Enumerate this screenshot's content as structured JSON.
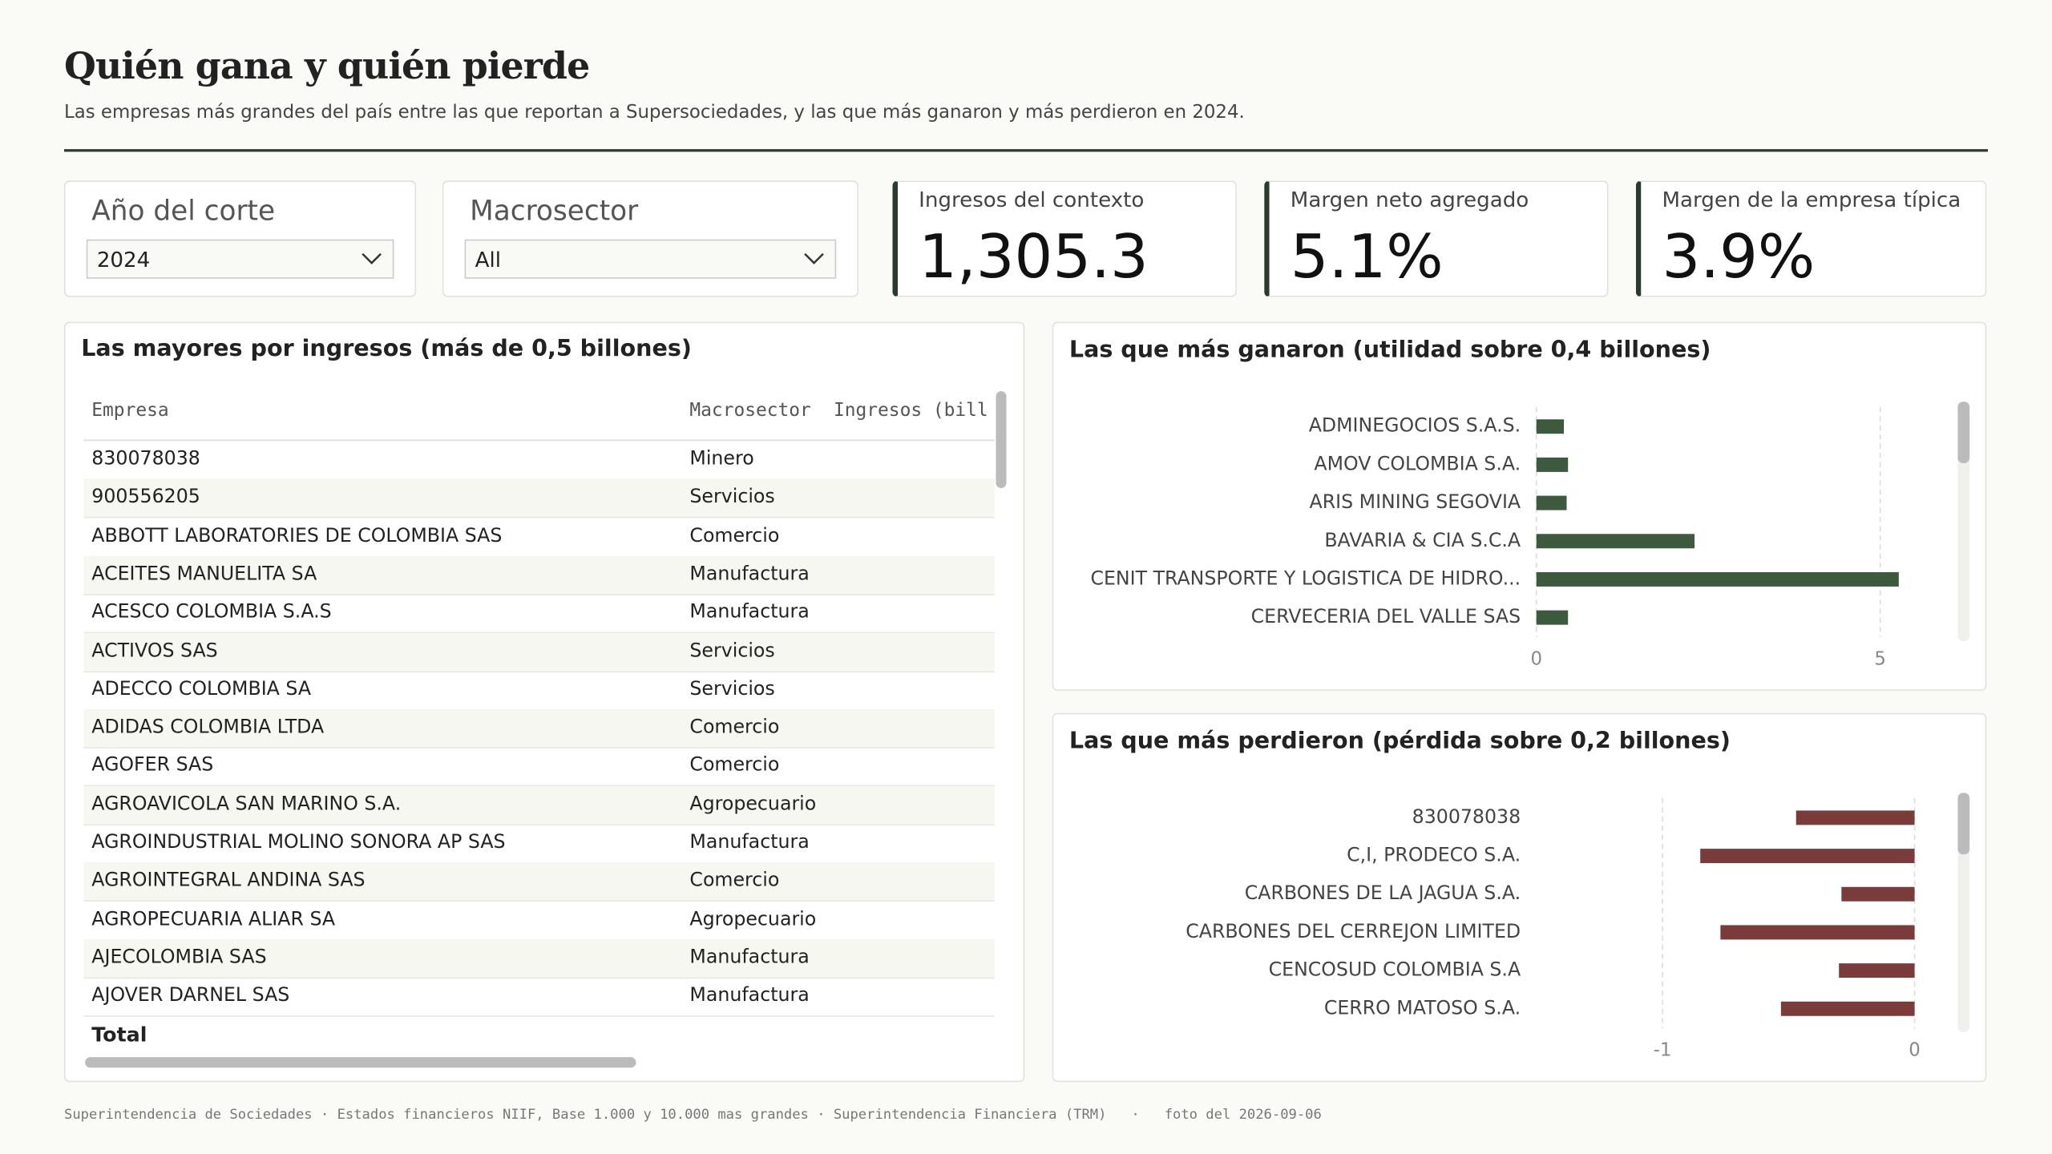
{
  "header": {
    "title": "Quién gana y quién pierde",
    "subtitle": "Las empresas más grandes del país entre las que reportan a Supersociedades, y las que más ganaron y más perdieron en 2024."
  },
  "filters": [
    {
      "label": "Año del corte",
      "value": "2024"
    },
    {
      "label": "Macrosector",
      "value": "All"
    }
  ],
  "kpis": [
    {
      "label": "Ingresos del contexto",
      "value": "1,305.3"
    },
    {
      "label": "Margen neto agregado",
      "value": "5.1%"
    },
    {
      "label": "Margen de la empresa típica",
      "value": "3.9%"
    }
  ],
  "table": {
    "title": "Las mayores por ingresos (más de 0,5 billones)",
    "columns": [
      "Empresa",
      "Macrosector",
      "Ingresos (bill"
    ],
    "rows": [
      [
        "830078038",
        "Minero"
      ],
      [
        "900556205",
        "Servicios"
      ],
      [
        "ABBOTT LABORATORIES DE COLOMBIA SAS",
        "Comercio"
      ],
      [
        "ACEITES MANUELITA SA",
        "Manufactura"
      ],
      [
        "ACESCO COLOMBIA S.A.S",
        "Manufactura"
      ],
      [
        "ACTIVOS SAS",
        "Servicios"
      ],
      [
        "ADECCO COLOMBIA SA",
        "Servicios"
      ],
      [
        "ADIDAS COLOMBIA LTDA",
        "Comercio"
      ],
      [
        "AGOFER SAS",
        "Comercio"
      ],
      [
        "AGROAVICOLA SAN MARINO S.A.",
        "Agropecuario"
      ],
      [
        "AGROINDUSTRIAL MOLINO SONORA AP SAS",
        "Manufactura"
      ],
      [
        "AGROINTEGRAL ANDINA SAS",
        "Comercio"
      ],
      [
        "AGROPECUARIA ALIAR SA",
        "Agropecuario"
      ],
      [
        "AJECOLOMBIA SAS",
        "Manufactura"
      ],
      [
        "AJOVER DARNEL SAS",
        "Manufactura"
      ]
    ],
    "total": "Total"
  },
  "chart_data": [
    {
      "type": "bar",
      "orientation": "horizontal",
      "title": "Las que más ganaron (utilidad sobre 0,4 billones)",
      "categories": [
        "ADMINEGOCIOS S.A.S.",
        "AMOV COLOMBIA S.A.",
        "ARIS MINING SEGOVIA",
        "BAVARIA & CIA S.C.A",
        "CENIT TRANSPORTE Y LOGISTICA DE HIDRO...",
        "CERVECERIA DEL VALLE SAS"
      ],
      "values": [
        0.4,
        0.46,
        0.44,
        2.3,
        5.27,
        0.46
      ],
      "color": "#3d5a3e",
      "xlim": [
        0,
        5.5
      ],
      "xticks": [
        0,
        5
      ],
      "grid": true
    },
    {
      "type": "bar",
      "orientation": "horizontal",
      "title": "Las que más perdieron (pérdida sobre 0,2 billones)",
      "categories": [
        "830078038",
        "C,I, PRODECO S.A.",
        "CARBONES DE LA JAGUA S.A.",
        "CARBONES DEL CERREJON LIMITED",
        "CENCOSUD COLOMBIA S.A",
        "CERRO MATOSO S.A."
      ],
      "values": [
        -0.47,
        -0.85,
        -0.29,
        -0.77,
        -0.3,
        -0.53
      ],
      "color": "#7a3b3b",
      "xlim": [
        -1.5,
        0
      ],
      "xticks": [
        -1,
        0
      ],
      "grid": true
    }
  ],
  "footer": {
    "sources": "Superintendencia de Sociedades · Estados financieros NIIF, Base 1.000 y 10.000 mas grandes · Superintendencia Financiera (TRM)",
    "sep": "·",
    "snapshot": "foto del 2026-09-06"
  }
}
